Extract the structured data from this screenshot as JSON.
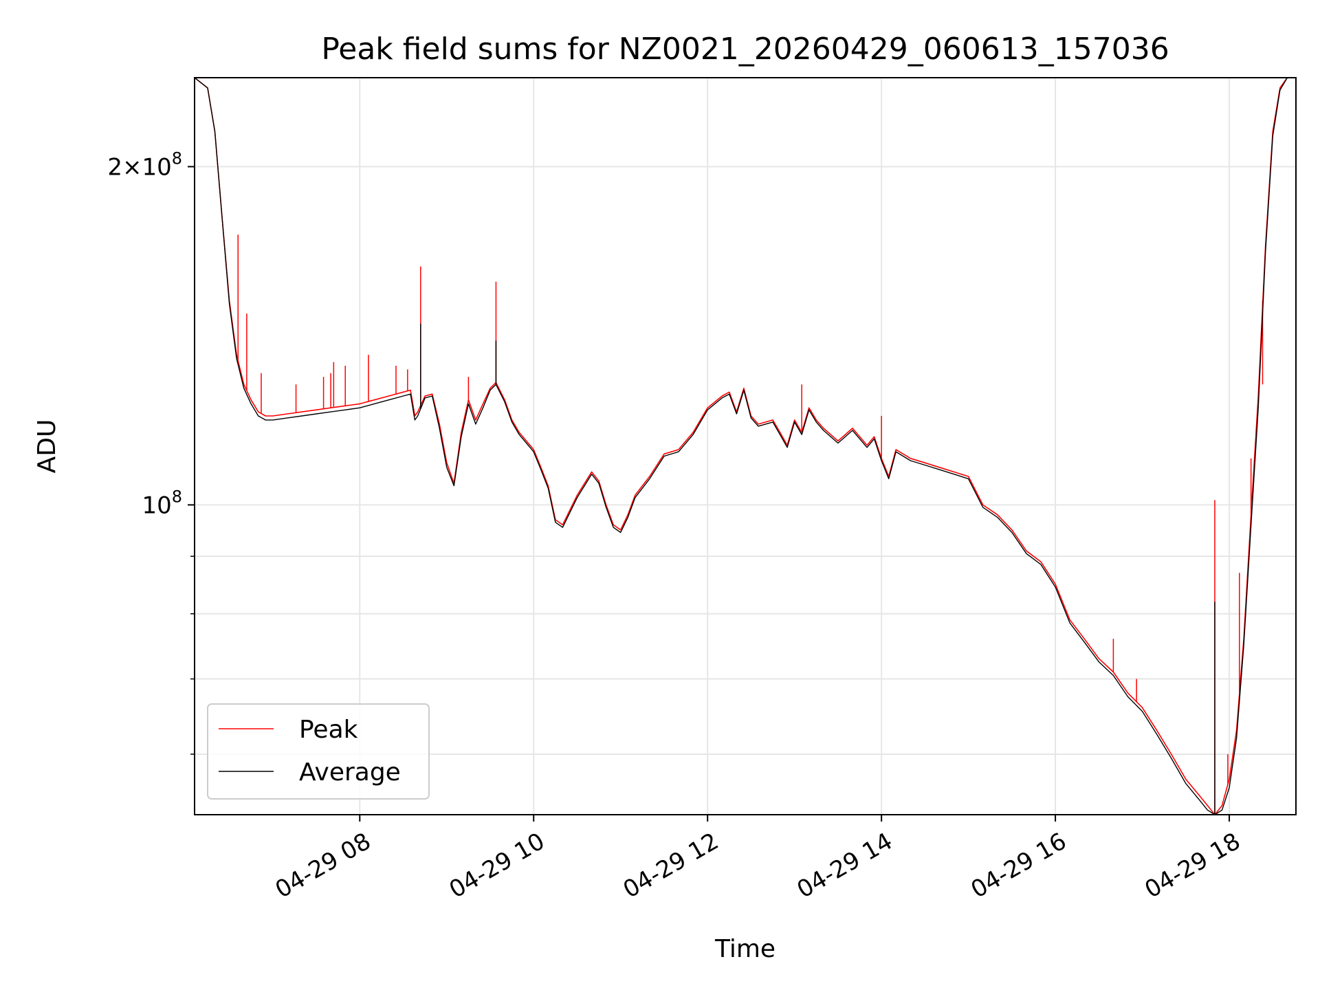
{
  "chart_data": {
    "type": "line",
    "title": "Peak field sums for NZ0021_20260429_060613_157036",
    "xlabel": "Time",
    "ylabel": "ADU",
    "yscale": "log",
    "xlim": [
      "2026-04-29 06:06",
      "2026-04-29 18:46"
    ],
    "ylim": [
      53000000,
      240000000
    ],
    "grid": true,
    "legend_position": "lower left",
    "x_ticks": [
      {
        "t": "2026-04-29 08:00",
        "label": "04-29 08"
      },
      {
        "t": "2026-04-29 10:00",
        "label": "04-29 10"
      },
      {
        "t": "2026-04-29 12:00",
        "label": "04-29 12"
      },
      {
        "t": "2026-04-29 14:00",
        "label": "04-29 14"
      },
      {
        "t": "2026-04-29 16:00",
        "label": "04-29 16"
      },
      {
        "t": "2026-04-29 18:00",
        "label": "04-29 18"
      }
    ],
    "y_major_ticks": [
      {
        "value": 100000000,
        "mantissa": "",
        "exponent": "8"
      },
      {
        "value": 200000000,
        "mantissa": "2",
        "exponent": "8"
      }
    ],
    "y_minor_ticks": [
      60000000,
      70000000,
      80000000,
      90000000
    ],
    "series": [
      {
        "name": "Peak",
        "color": "#ff0000",
        "x": [
          "2026-04-29 06:06",
          "2026-04-29 06:15",
          "2026-04-29 06:20",
          "2026-04-29 06:25",
          "2026-04-29 06:30",
          "2026-04-29 06:35",
          "2026-04-29 06:40",
          "2026-04-29 06:45",
          "2026-04-29 06:50",
          "2026-04-29 06:55",
          "2026-04-29 07:00",
          "2026-04-29 07:10",
          "2026-04-29 07:20",
          "2026-04-29 07:30",
          "2026-04-29 07:40",
          "2026-04-29 07:50",
          "2026-04-29 08:00",
          "2026-04-29 08:10",
          "2026-04-29 08:20",
          "2026-04-29 08:30",
          "2026-04-29 08:35",
          "2026-04-29 08:38",
          "2026-04-29 08:40",
          "2026-04-29 08:45",
          "2026-04-29 08:50",
          "2026-04-29 08:55",
          "2026-04-29 09:00",
          "2026-04-29 09:05",
          "2026-04-29 09:10",
          "2026-04-29 09:15",
          "2026-04-29 09:20",
          "2026-04-29 09:25",
          "2026-04-29 09:30",
          "2026-04-29 09:34",
          "2026-04-29 09:40",
          "2026-04-29 09:45",
          "2026-04-29 09:50",
          "2026-04-29 09:55",
          "2026-04-29 10:00",
          "2026-04-29 10:05",
          "2026-04-29 10:10",
          "2026-04-29 10:15",
          "2026-04-29 10:20",
          "2026-04-29 10:30",
          "2026-04-29 10:40",
          "2026-04-29 10:45",
          "2026-04-29 10:50",
          "2026-04-29 10:55",
          "2026-04-29 11:00",
          "2026-04-29 11:05",
          "2026-04-29 11:10",
          "2026-04-29 11:20",
          "2026-04-29 11:30",
          "2026-04-29 11:40",
          "2026-04-29 11:50",
          "2026-04-29 12:00",
          "2026-04-29 12:10",
          "2026-04-29 12:15",
          "2026-04-29 12:20",
          "2026-04-29 12:25",
          "2026-04-29 12:30",
          "2026-04-29 12:35",
          "2026-04-29 12:45",
          "2026-04-29 12:50",
          "2026-04-29 12:55",
          "2026-04-29 13:00",
          "2026-04-29 13:05",
          "2026-04-29 13:10",
          "2026-04-29 13:15",
          "2026-04-29 13:20",
          "2026-04-29 13:30",
          "2026-04-29 13:40",
          "2026-04-29 13:50",
          "2026-04-29 13:55",
          "2026-04-29 14:00",
          "2026-04-29 14:05",
          "2026-04-29 14:10",
          "2026-04-29 14:20",
          "2026-04-29 14:30",
          "2026-04-29 14:40",
          "2026-04-29 14:50",
          "2026-04-29 15:00",
          "2026-04-29 15:10",
          "2026-04-29 15:20",
          "2026-04-29 15:30",
          "2026-04-29 15:40",
          "2026-04-29 15:50",
          "2026-04-29 16:00",
          "2026-04-29 16:10",
          "2026-04-29 16:20",
          "2026-04-29 16:30",
          "2026-04-29 16:40",
          "2026-04-29 16:50",
          "2026-04-29 17:00",
          "2026-04-29 17:10",
          "2026-04-29 17:20",
          "2026-04-29 17:30",
          "2026-04-29 17:40",
          "2026-04-29 17:45",
          "2026-04-29 17:50",
          "2026-04-29 17:55",
          "2026-04-29 18:00",
          "2026-04-29 18:05",
          "2026-04-29 18:10",
          "2026-04-29 18:15",
          "2026-04-29 18:20",
          "2026-04-29 18:25",
          "2026-04-29 18:30",
          "2026-04-29 18:35",
          "2026-04-29 18:40",
          "2026-04-29 18:46"
        ],
        "y": [
          240000000,
          235000000,
          215000000,
          180000000,
          152000000,
          136000000,
          128000000,
          124000000,
          121000000,
          120000000,
          120000000,
          120500000,
          121000000,
          121500000,
          122000000,
          122500000,
          123000000,
          124000000,
          125000000,
          126000000,
          126500000,
          120000000,
          121000000,
          125000000,
          125500000,
          118000000,
          109000000,
          104500000,
          116000000,
          124000000,
          119000000,
          123000000,
          127000000,
          128500000,
          124000000,
          119000000,
          116000000,
          114000000,
          112000000,
          108000000,
          104000000,
          97000000,
          96000000,
          102000000,
          107000000,
          105000000,
          100000000,
          96000000,
          95000000,
          98000000,
          102000000,
          106000000,
          111000000,
          112000000,
          116000000,
          122000000,
          125000000,
          126000000,
          121000000,
          127000000,
          120000000,
          118000000,
          119000000,
          116000000,
          113000000,
          119000000,
          116000000,
          122000000,
          119000000,
          117000000,
          114000000,
          117000000,
          113000000,
          115000000,
          110000000,
          106000000,
          112000000,
          110000000,
          109000000,
          108000000,
          107000000,
          106000000,
          100000000,
          98000000,
          95000000,
          91000000,
          89000000,
          85000000,
          79000000,
          76000000,
          73000000,
          71000000,
          68000000,
          66000000,
          63000000,
          60000000,
          57000000,
          55000000,
          54000000,
          53000000,
          54000000,
          57000000,
          63000000,
          76000000,
          98000000,
          125000000,
          170000000,
          215000000,
          235000000,
          240000000,
          240000000
        ],
        "spikes": [
          {
            "x": "2026-04-29 06:36",
            "y": 174000000
          },
          {
            "x": "2026-04-29 06:42",
            "y": 148000000
          },
          {
            "x": "2026-04-29 06:52",
            "y": 131000000
          },
          {
            "x": "2026-04-29 07:16",
            "y": 128000000
          },
          {
            "x": "2026-04-29 07:35",
            "y": 130000000
          },
          {
            "x": "2026-04-29 07:40",
            "y": 131000000
          },
          {
            "x": "2026-04-29 07:42",
            "y": 134000000
          },
          {
            "x": "2026-04-29 07:50",
            "y": 133000000
          },
          {
            "x": "2026-04-29 08:06",
            "y": 136000000
          },
          {
            "x": "2026-04-29 08:25",
            "y": 133000000
          },
          {
            "x": "2026-04-29 08:33",
            "y": 132000000
          },
          {
            "x": "2026-04-29 08:42",
            "y": 163000000
          },
          {
            "x": "2026-04-29 09:15",
            "y": 130000000
          },
          {
            "x": "2026-04-29 09:34",
            "y": 158000000
          },
          {
            "x": "2026-04-29 13:05",
            "y": 128000000
          },
          {
            "x": "2026-04-29 14:00",
            "y": 120000000
          },
          {
            "x": "2026-04-29 16:40",
            "y": 76000000
          },
          {
            "x": "2026-04-29 16:56",
            "y": 70000000
          },
          {
            "x": "2026-04-29 17:50",
            "y": 101000000
          },
          {
            "x": "2026-04-29 17:59",
            "y": 60000000
          },
          {
            "x": "2026-04-29 18:07",
            "y": 87000000
          },
          {
            "x": "2026-04-29 18:15",
            "y": 110000000
          },
          {
            "x": "2026-04-29 18:23",
            "y": 128000000
          }
        ]
      },
      {
        "name": "Average",
        "color": "#000000",
        "x": [
          "2026-04-29 06:06",
          "2026-04-29 06:15",
          "2026-04-29 06:20",
          "2026-04-29 06:25",
          "2026-04-29 06:30",
          "2026-04-29 06:35",
          "2026-04-29 06:40",
          "2026-04-29 06:45",
          "2026-04-29 06:50",
          "2026-04-29 06:55",
          "2026-04-29 07:00",
          "2026-04-29 07:10",
          "2026-04-29 07:20",
          "2026-04-29 07:30",
          "2026-04-29 07:40",
          "2026-04-29 07:50",
          "2026-04-29 08:00",
          "2026-04-29 08:10",
          "2026-04-29 08:20",
          "2026-04-29 08:30",
          "2026-04-29 08:35",
          "2026-04-29 08:38",
          "2026-04-29 08:40",
          "2026-04-29 08:45",
          "2026-04-29 08:50",
          "2026-04-29 08:55",
          "2026-04-29 09:00",
          "2026-04-29 09:05",
          "2026-04-29 09:10",
          "2026-04-29 09:15",
          "2026-04-29 09:20",
          "2026-04-29 09:25",
          "2026-04-29 09:30",
          "2026-04-29 09:34",
          "2026-04-29 09:40",
          "2026-04-29 09:45",
          "2026-04-29 09:50",
          "2026-04-29 09:55",
          "2026-04-29 10:00",
          "2026-04-29 10:05",
          "2026-04-29 10:10",
          "2026-04-29 10:15",
          "2026-04-29 10:20",
          "2026-04-29 10:30",
          "2026-04-29 10:40",
          "2026-04-29 10:45",
          "2026-04-29 10:50",
          "2026-04-29 10:55",
          "2026-04-29 11:00",
          "2026-04-29 11:05",
          "2026-04-29 11:10",
          "2026-04-29 11:20",
          "2026-04-29 11:30",
          "2026-04-29 11:40",
          "2026-04-29 11:50",
          "2026-04-29 12:00",
          "2026-04-29 12:10",
          "2026-04-29 12:15",
          "2026-04-29 12:20",
          "2026-04-29 12:25",
          "2026-04-29 12:30",
          "2026-04-29 12:35",
          "2026-04-29 12:45",
          "2026-04-29 12:50",
          "2026-04-29 12:55",
          "2026-04-29 13:00",
          "2026-04-29 13:05",
          "2026-04-29 13:10",
          "2026-04-29 13:15",
          "2026-04-29 13:20",
          "2026-04-29 13:30",
          "2026-04-29 13:40",
          "2026-04-29 13:50",
          "2026-04-29 13:55",
          "2026-04-29 14:00",
          "2026-04-29 14:05",
          "2026-04-29 14:10",
          "2026-04-29 14:20",
          "2026-04-29 14:30",
          "2026-04-29 14:40",
          "2026-04-29 14:50",
          "2026-04-29 15:00",
          "2026-04-29 15:10",
          "2026-04-29 15:20",
          "2026-04-29 15:30",
          "2026-04-29 15:40",
          "2026-04-29 15:50",
          "2026-04-29 16:00",
          "2026-04-29 16:10",
          "2026-04-29 16:20",
          "2026-04-29 16:30",
          "2026-04-29 16:40",
          "2026-04-29 16:50",
          "2026-04-29 17:00",
          "2026-04-29 17:10",
          "2026-04-29 17:20",
          "2026-04-29 17:30",
          "2026-04-29 17:40",
          "2026-04-29 17:45",
          "2026-04-29 17:50",
          "2026-04-29 17:55",
          "2026-04-29 18:00",
          "2026-04-29 18:05",
          "2026-04-29 18:10",
          "2026-04-29 18:15",
          "2026-04-29 18:20",
          "2026-04-29 18:25",
          "2026-04-29 18:30",
          "2026-04-29 18:35",
          "2026-04-29 18:40",
          "2026-04-29 18:46"
        ],
        "y": [
          240000000,
          235000000,
          215000000,
          180000000,
          151000000,
          135000000,
          127000000,
          123000000,
          120000000,
          119000000,
          119000000,
          119500000,
          120000000,
          120500000,
          121000000,
          121500000,
          122000000,
          123000000,
          124000000,
          125000000,
          125500000,
          119000000,
          120000000,
          124500000,
          125000000,
          117000000,
          108000000,
          104000000,
          115000000,
          123000000,
          118000000,
          122000000,
          126500000,
          128000000,
          123500000,
          118500000,
          115500000,
          113500000,
          111500000,
          107500000,
          103500000,
          96500000,
          95500000,
          101500000,
          106500000,
          104500000,
          99500000,
          95500000,
          94500000,
          97500000,
          101500000,
          105500000,
          110500000,
          111500000,
          115500000,
          121500000,
          124500000,
          125500000,
          120500000,
          126500000,
          119500000,
          117500000,
          118500000,
          115500000,
          112500000,
          118500000,
          115500000,
          121500000,
          118500000,
          116500000,
          113500000,
          116500000,
          112500000,
          114500000,
          109500000,
          105500000,
          111500000,
          109500000,
          108500000,
          107500000,
          106500000,
          105500000,
          99500000,
          97500000,
          94500000,
          90500000,
          88500000,
          84500000,
          78500000,
          75500000,
          72500000,
          70500000,
          67500000,
          65500000,
          62500000,
          59500000,
          56500000,
          54500000,
          53500000,
          53000000,
          53500000,
          56000000,
          62000000,
          75000000,
          96000000,
          122000000,
          168000000,
          213000000,
          234000000,
          240000000,
          240000000
        ],
        "spikes": [
          {
            "x": "2026-04-29 08:42",
            "y": 145000000
          },
          {
            "x": "2026-04-29 09:34",
            "y": 140000000
          },
          {
            "x": "2026-04-29 17:50",
            "y": 82000000
          }
        ]
      }
    ]
  }
}
